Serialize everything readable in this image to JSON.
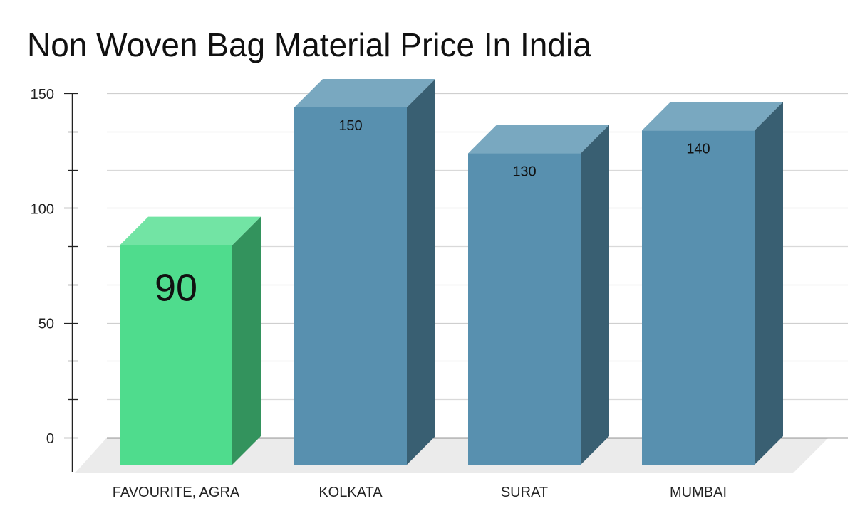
{
  "chart_data": {
    "type": "bar",
    "title": "Non Woven Bag Material Price In India",
    "xlabel": "",
    "ylabel": "",
    "categories": [
      "FAVOURITE, AGRA",
      "KOLKATA",
      "SURAT",
      "MUMBAI"
    ],
    "values": [
      90,
      150,
      130,
      140
    ],
    "data_labels": [
      "90",
      "150",
      "130",
      "140"
    ],
    "ylim": [
      0,
      150
    ],
    "yticks": [
      0,
      50,
      100,
      150
    ],
    "grid": true,
    "legend": "none",
    "style": "3d",
    "colors": {
      "highlight_front": "#4fdc8d",
      "highlight_top": "#72e4a4",
      "highlight_side": "#33935d",
      "bar_front": "#5890af",
      "bar_top": "#79a8c0",
      "bar_side": "#395f72",
      "floor": "#ebebeb",
      "grid": "#d9d9d9",
      "axis": "#222222"
    }
  }
}
